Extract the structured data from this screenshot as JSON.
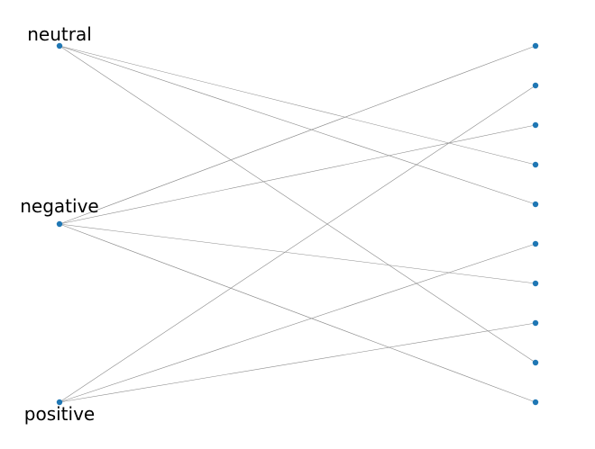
{
  "node_color": "#1f77b4",
  "edge_color": "#8c8c8c",
  "left_nodes": [
    {
      "id": "L0",
      "label": "neutral"
    },
    {
      "id": "L1",
      "label": "negative"
    },
    {
      "id": "L2",
      "label": "positive"
    }
  ],
  "right_nodes": [
    {
      "id": "R0"
    },
    {
      "id": "R1"
    },
    {
      "id": "R2"
    },
    {
      "id": "R3"
    },
    {
      "id": "R4"
    },
    {
      "id": "R5"
    },
    {
      "id": "R6"
    },
    {
      "id": "R7"
    },
    {
      "id": "R8"
    },
    {
      "id": "R9"
    }
  ],
  "edges": [
    [
      "L0",
      "R3"
    ],
    [
      "L0",
      "R4"
    ],
    [
      "L0",
      "R8"
    ],
    [
      "L1",
      "R0"
    ],
    [
      "L1",
      "R2"
    ],
    [
      "L1",
      "R6"
    ],
    [
      "L1",
      "R9"
    ],
    [
      "L2",
      "R1"
    ],
    [
      "L2",
      "R5"
    ],
    [
      "L2",
      "R7"
    ]
  ]
}
